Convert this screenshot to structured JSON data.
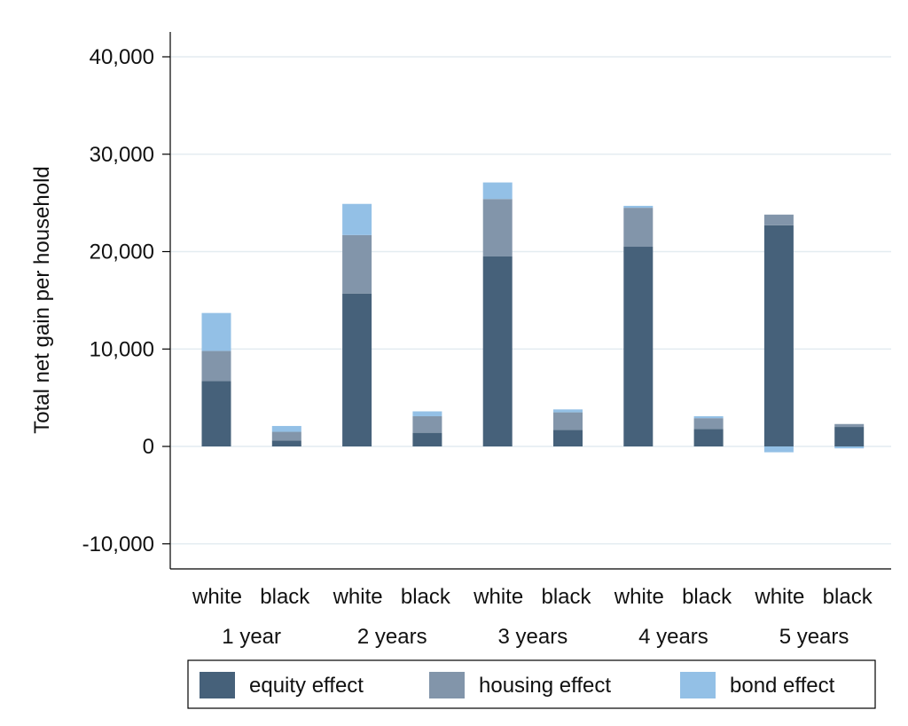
{
  "chart_data": {
    "type": "bar",
    "stacked": true,
    "ylabel": "Total net gain per household",
    "ylim": [
      -10000,
      40000
    ],
    "yticks": [
      -10000,
      0,
      10000,
      20000,
      30000,
      40000
    ],
    "ytick_labels": [
      "-10,000",
      "0",
      "10,000",
      "20,000",
      "30,000",
      "40,000"
    ],
    "grid": true,
    "legend_position": "bottom",
    "groups": [
      {
        "label": "1 year",
        "bars": [
          "white",
          "black"
        ]
      },
      {
        "label": "2 years",
        "bars": [
          "white",
          "black"
        ]
      },
      {
        "label": "3 years",
        "bars": [
          "white",
          "black"
        ]
      },
      {
        "label": "4 years",
        "bars": [
          "white",
          "black"
        ]
      },
      {
        "label": "5 years",
        "bars": [
          "white",
          "black"
        ]
      }
    ],
    "categories": [
      "white 1 year",
      "black 1 year",
      "white 2 years",
      "black 2 years",
      "white 3 years",
      "black 3 years",
      "white 4 years",
      "black 4 years",
      "white 5 years",
      "black 5 years"
    ],
    "series": [
      {
        "name": "equity effect",
        "color": "#46617a",
        "values": [
          6700,
          600,
          15700,
          1400,
          19500,
          1700,
          20500,
          1800,
          22700,
          2000
        ]
      },
      {
        "name": "housing effect",
        "color": "#8295aa",
        "values": [
          3100,
          900,
          6000,
          1700,
          5900,
          1800,
          4000,
          1100,
          1100,
          300
        ]
      },
      {
        "name": "bond effect",
        "color": "#93c0e6",
        "values": [
          3900,
          600,
          3200,
          500,
          1700,
          300,
          200,
          200,
          -600,
          -200
        ]
      }
    ]
  }
}
